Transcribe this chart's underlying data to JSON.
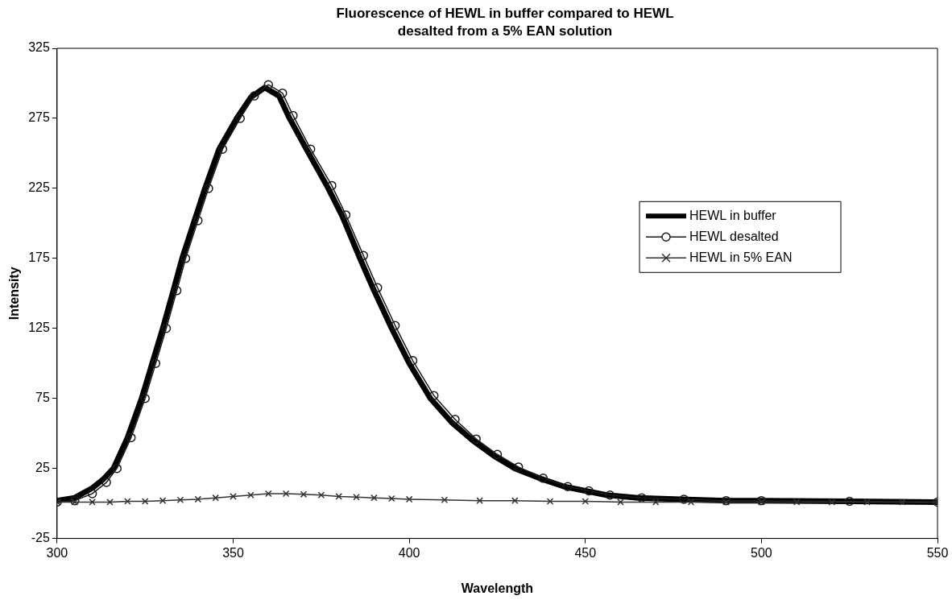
{
  "chart_data": {
    "type": "line",
    "title": "Fluorescence of HEWL in buffer compared to HEWL desalted from a 5% EAN solution",
    "xlabel": "Wavelength",
    "ylabel": "Intensity",
    "xlim": [
      300,
      550
    ],
    "xticks": [
      300,
      350,
      400,
      450,
      500,
      550
    ],
    "ylim": [
      -25,
      325
    ],
    "yticks": [
      -25,
      25,
      75,
      125,
      175,
      225,
      275,
      325
    ],
    "grid": false,
    "legend": "right",
    "series": [
      {
        "name": "HEWL in buffer",
        "color": "#000000",
        "marker": "none",
        "x": [
          300,
          305,
          310,
          313,
          316,
          320,
          324,
          327,
          330,
          333,
          335.5,
          339,
          342,
          346,
          351,
          355,
          359,
          363,
          366,
          371,
          377,
          381,
          386,
          390,
          395,
          400,
          406,
          412,
          418,
          424,
          430,
          437,
          444,
          450,
          456,
          465,
          477,
          490,
          500,
          525,
          550
        ],
        "values": [
          2,
          4,
          11,
          17,
          25,
          47,
          75,
          100,
          125,
          152,
          175,
          202,
          225,
          253,
          275,
          290,
          297,
          291,
          275,
          252,
          225,
          205,
          175,
          152,
          125,
          100,
          75,
          58,
          45,
          34,
          25,
          18,
          12,
          9,
          6,
          4,
          3,
          2,
          2,
          1.5,
          1
        ]
      },
      {
        "name": "HEWL desalted",
        "color": "#1a1a1a",
        "marker": "circle",
        "x": [
          300,
          305,
          310,
          314,
          317,
          321,
          325,
          328,
          331,
          334,
          336.5,
          340,
          343,
          347,
          352,
          356,
          360,
          364,
          367,
          372,
          378,
          382,
          387,
          391,
          396,
          401,
          407,
          413,
          419,
          425,
          431,
          438,
          445,
          451,
          457,
          466,
          478,
          490,
          500,
          525,
          550
        ],
        "values": [
          1,
          2,
          7,
          15,
          25,
          47,
          75,
          100,
          125,
          152,
          175,
          202,
          225,
          253,
          275,
          291,
          299,
          293,
          277,
          253,
          227,
          206,
          177,
          154,
          127,
          102,
          77,
          60,
          46,
          35,
          26,
          18,
          12,
          9,
          6,
          4,
          3,
          2,
          2,
          1.5,
          1
        ]
      },
      {
        "name": "HEWL in 5% EAN",
        "color": "#333333",
        "marker": "cross",
        "x": [
          300,
          305,
          310,
          315,
          320,
          325,
          330,
          335,
          340,
          345,
          350,
          355,
          360,
          365,
          370,
          375,
          380,
          385,
          390,
          395,
          400,
          410,
          420,
          430,
          440,
          450,
          460,
          470,
          480,
          490,
          500,
          510,
          520,
          530,
          540,
          550
        ],
        "values": [
          1,
          1,
          1,
          1,
          1.5,
          1.5,
          2,
          2.5,
          3,
          4,
          5,
          6,
          7,
          7,
          6.5,
          6,
          5,
          4.5,
          4,
          3.5,
          3,
          2.5,
          2,
          2,
          1.5,
          1.5,
          1,
          1,
          1,
          1,
          1,
          1,
          1,
          1,
          1,
          1
        ]
      }
    ]
  }
}
